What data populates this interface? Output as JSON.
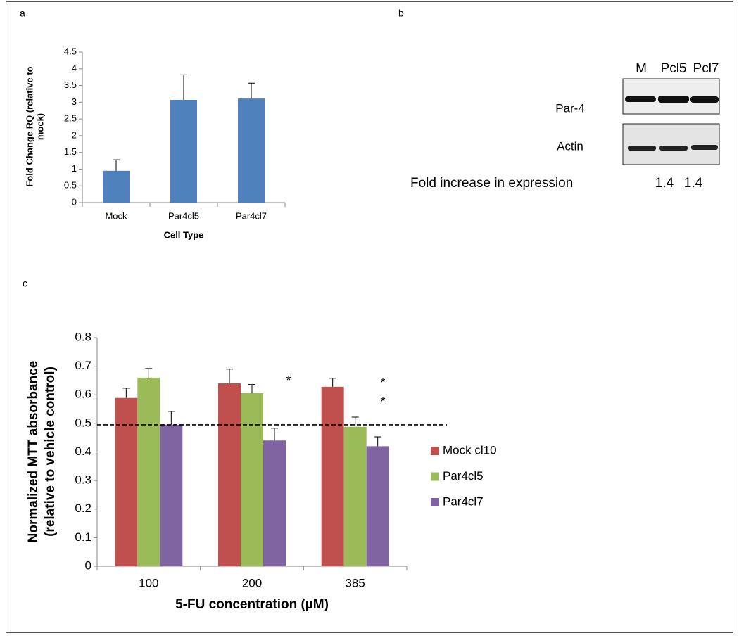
{
  "panel_labels": [
    "a",
    "b",
    "c"
  ],
  "chart_data": [
    {
      "type": "bar",
      "y_label": [
        "Fold Change RQ (relative to",
        "mock)"
      ],
      "x_label": "Cell Type",
      "categories": [
        "Mock",
        "Par4cl5",
        "Par4cl7"
      ],
      "values": [
        0.95,
        3.07,
        3.11
      ],
      "errors": [
        0.33,
        0.75,
        0.46
      ],
      "color": "#4f81bd",
      "ylim": [
        0,
        4.5
      ],
      "yticks": [
        0,
        0.5,
        1,
        1.5,
        2,
        2.5,
        3,
        3.5,
        4,
        4.5
      ]
    },
    {
      "type": "bar",
      "y_label": [
        "Normalized MTT absorbance",
        "(relative to vehicle control)"
      ],
      "x_label": "5-FU concentration (µM)",
      "categories": [
        "100",
        "200",
        "385"
      ],
      "series": [
        {
          "name": "Mock cl10",
          "color": "#c0504d",
          "values": [
            0.589,
            0.64,
            0.628
          ],
          "errors": [
            0.034,
            0.05,
            0.03
          ]
        },
        {
          "name": "Par4cl5",
          "color": "#9bbb59",
          "values": [
            0.66,
            0.606,
            0.488
          ],
          "errors": [
            0.032,
            0.03,
            0.034
          ]
        },
        {
          "name": "Par4cl7",
          "color": "#8064a2",
          "values": [
            0.495,
            0.44,
            0.42
          ],
          "errors": [
            0.047,
            0.043,
            0.033
          ]
        }
      ],
      "reference_line": 0.495,
      "annotations": [
        "*",
        "*",
        "*"
      ],
      "ylim": [
        0,
        0.8
      ],
      "yticks": [
        0,
        0.1,
        0.2,
        0.3,
        0.4,
        0.5,
        0.6,
        0.7,
        0.8
      ]
    }
  ],
  "blot": {
    "lanes": [
      "M",
      "Pcl5",
      "Pcl7"
    ],
    "rows": [
      "Par-4",
      "Actin"
    ],
    "fold_label": "Fold increase in expression",
    "fold_values": [
      1.4,
      1.4
    ]
  }
}
